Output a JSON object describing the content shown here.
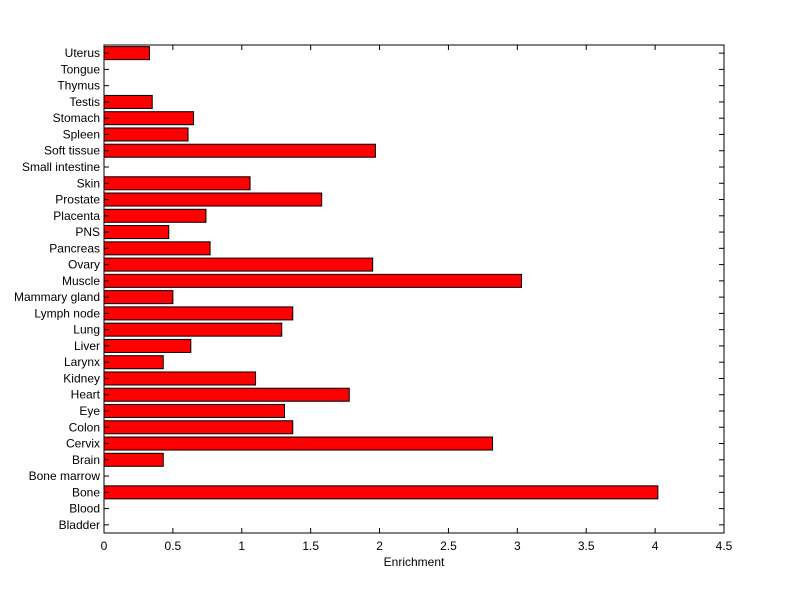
{
  "chart_data": {
    "type": "bar",
    "orientation": "horizontal",
    "title": "",
    "xlabel": "Enrichment",
    "ylabel": "",
    "xlim": [
      0,
      4.5
    ],
    "xticks": [
      0,
      0.5,
      1,
      1.5,
      2,
      2.5,
      3,
      3.5,
      4,
      4.5
    ],
    "xtick_labels": [
      "0",
      "0.5",
      "1",
      "1.5",
      "2",
      "2.5",
      "3",
      "3.5",
      "4",
      "4.5"
    ],
    "grid": false,
    "legend": "none",
    "bar_color": "#ff0000",
    "edge_color": "#000000",
    "categories": [
      "Bladder",
      "Blood",
      "Bone",
      "Bone marrow",
      "Brain",
      "Cervix",
      "Colon",
      "Eye",
      "Heart",
      "Kidney",
      "Larynx",
      "Liver",
      "Lung",
      "Lymph node",
      "Mammary gland",
      "Muscle",
      "Ovary",
      "Pancreas",
      "PNS",
      "Placenta",
      "Prostate",
      "Skin",
      "Small intestine",
      "Soft tissue",
      "Spleen",
      "Stomach",
      "Testis",
      "Thymus",
      "Tongue",
      "Uterus"
    ],
    "values": [
      0,
      0,
      4.02,
      0,
      0.43,
      2.82,
      1.37,
      1.31,
      1.78,
      1.1,
      0.43,
      0.63,
      1.29,
      1.37,
      0.5,
      3.03,
      1.95,
      0.77,
      0.47,
      0.74,
      1.58,
      1.06,
      0,
      1.97,
      0.61,
      0.65,
      0.35,
      0,
      0,
      0.33
    ]
  }
}
